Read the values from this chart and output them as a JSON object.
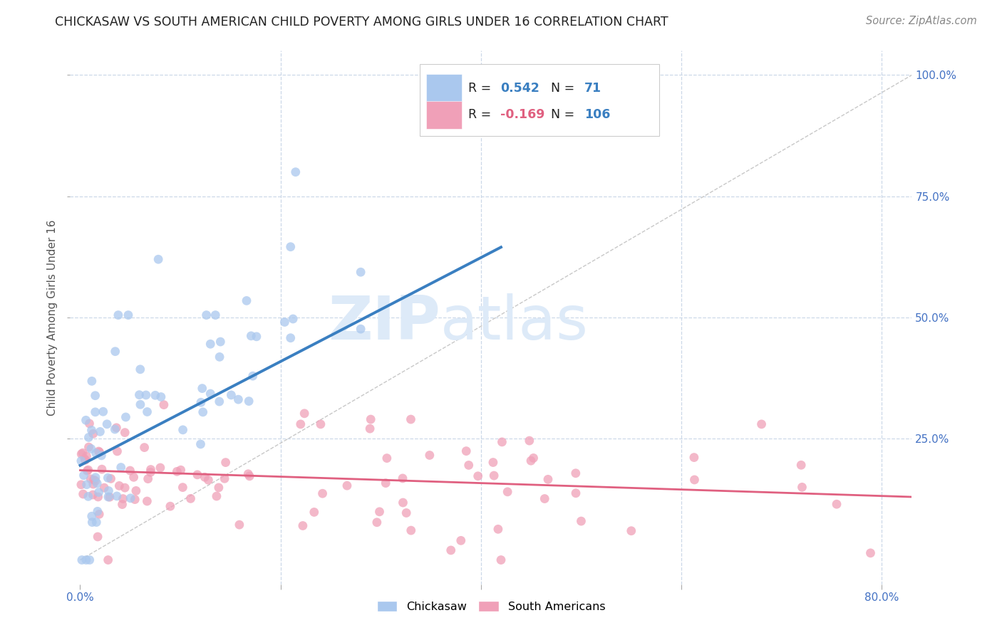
{
  "title": "CHICKASAW VS SOUTH AMERICAN CHILD POVERTY AMONG GIRLS UNDER 16 CORRELATION CHART",
  "source": "Source: ZipAtlas.com",
  "ylabel": "Child Poverty Among Girls Under 16",
  "x_tick_labels_shown": [
    "0.0%",
    "80.0%"
  ],
  "x_tick_positions_shown": [
    0.0,
    0.8
  ],
  "y_tick_labels": [
    "100.0%",
    "75.0%",
    "50.0%",
    "25.0%"
  ],
  "y_tick_positions": [
    1.0,
    0.75,
    0.5,
    0.25
  ],
  "xlim": [
    -0.01,
    0.83
  ],
  "ylim": [
    -0.05,
    1.05
  ],
  "chickasaw_R": 0.542,
  "chickasaw_N": 71,
  "south_american_R": -0.169,
  "south_american_N": 106,
  "chickasaw_color": "#aac8ee",
  "chickasaw_line_color": "#3a7fc1",
  "south_american_color": "#f0a0b8",
  "south_american_line_color": "#e06080",
  "diagonal_color": "#c8c8c8",
  "background_color": "#ffffff",
  "grid_color": "#ccd8e8",
  "watermark_zip": "ZIP",
  "watermark_atlas": "atlas",
  "watermark_color": "#ddeaf8",
  "title_fontsize": 12.5,
  "axis_label_fontsize": 11,
  "tick_fontsize": 11,
  "source_fontsize": 10.5,
  "legend_box_color": "#ffffff",
  "legend_box_edge": "#cccccc",
  "legend_R_color": "#222222",
  "legend_val_chick_color": "#3a7fc1",
  "legend_val_sa_color": "#e06080",
  "legend_N_color": "#3a7fc1"
}
